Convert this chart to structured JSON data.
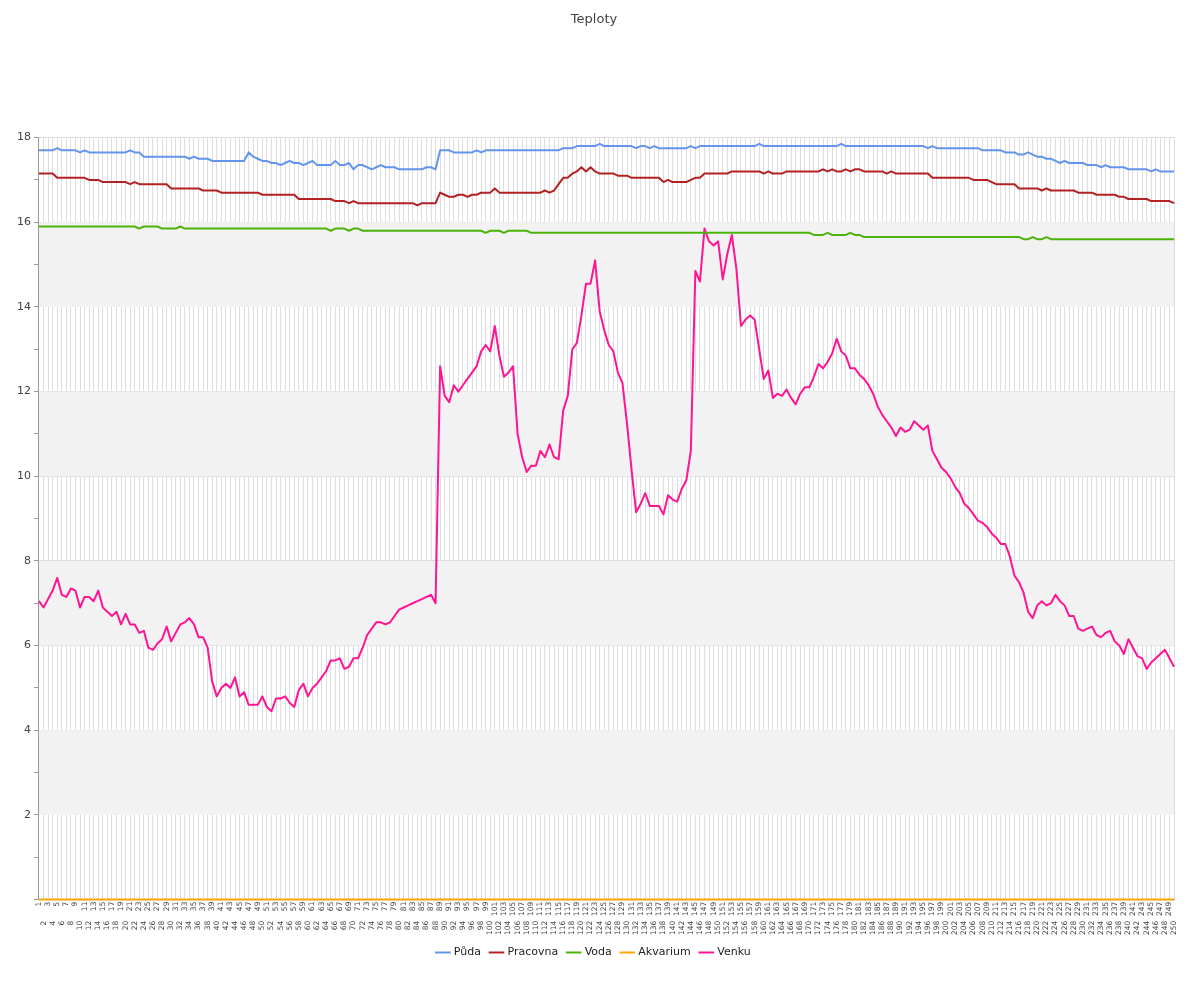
{
  "chart_data": {
    "type": "line",
    "title": "Teploty",
    "categories": [
      "1",
      "2",
      "3",
      "4",
      "5",
      "6",
      "7",
      "8",
      "9",
      "10",
      "11",
      "12",
      "13",
      "14",
      "15",
      "16",
      "17",
      "18",
      "19",
      "20",
      "21",
      "22",
      "23",
      "24",
      "25",
      "26",
      "27",
      "28",
      "29",
      "30",
      "31",
      "32",
      "33",
      "34",
      "35",
      "36",
      "37",
      "38",
      "39",
      "40",
      "41",
      "42",
      "43",
      "44",
      "45",
      "46",
      "47",
      "48",
      "49",
      "50",
      "51",
      "52",
      "53",
      "54",
      "55",
      "56",
      "57",
      "58",
      "59",
      "60",
      "61",
      "62",
      "63",
      "64",
      "65",
      "66",
      "67",
      "68",
      "69",
      "70",
      "71",
      "72",
      "73",
      "74",
      "75",
      "76",
      "77",
      "78",
      "79",
      "80",
      "81",
      "82",
      "83",
      "84",
      "85",
      "86",
      "87",
      "88",
      "89",
      "90",
      "91",
      "92",
      "93",
      "94",
      "95",
      "96",
      "97",
      "98",
      "99",
      "100",
      "101",
      "102",
      "103",
      "104",
      "105",
      "106",
      "107",
      "108",
      "109",
      "110",
      "111",
      "112",
      "113",
      "114",
      "115",
      "116",
      "117",
      "118",
      "119",
      "120",
      "121",
      "122",
      "123",
      "124",
      "125",
      "126",
      "127",
      "128",
      "129",
      "130",
      "131",
      "132",
      "133",
      "134",
      "135",
      "136",
      "137",
      "138",
      "139",
      "140",
      "141",
      "142",
      "143",
      "144",
      "145",
      "146",
      "147",
      "148",
      "149",
      "150",
      "151",
      "152",
      "153",
      "154",
      "155",
      "156",
      "157",
      "158",
      "159",
      "160",
      "161",
      "162",
      "163",
      "164",
      "165",
      "166",
      "167",
      "168",
      "169",
      "170",
      "171",
      "172",
      "173",
      "174",
      "175",
      "176",
      "177",
      "178",
      "179",
      "180",
      "181",
      "182",
      "183",
      "184",
      "185",
      "186",
      "187",
      "188",
      "189",
      "190",
      "191",
      "192",
      "193",
      "194",
      "195",
      "196",
      "197",
      "198",
      "199",
      "200",
      "201",
      "202",
      "203",
      "204",
      "205",
      "206",
      "207",
      "208",
      "209",
      "210",
      "211",
      "212",
      "213",
      "214",
      "215",
      "216",
      "217",
      "218",
      "219",
      "220",
      "221",
      "222",
      "223",
      "224",
      "225",
      "226",
      "227",
      "228",
      "229",
      "230",
      "231",
      "232",
      "233",
      "234",
      "235",
      "236",
      "237",
      "238",
      "239",
      "240",
      "241",
      "242",
      "243",
      "244",
      "245",
      "246",
      "247",
      "248",
      "249",
      "250"
    ],
    "series": [
      {
        "name": "Půda",
        "color": "#6495ed",
        "values": [
          17.7,
          17.7,
          17.7,
          17.7,
          17.75,
          17.7,
          17.7,
          17.7,
          17.7,
          17.65,
          17.7,
          17.65,
          17.65,
          17.65,
          17.65,
          17.65,
          17.65,
          17.65,
          17.65,
          17.65,
          17.7,
          17.65,
          17.65,
          17.55,
          17.55,
          17.55,
          17.55,
          17.55,
          17.55,
          17.55,
          17.55,
          17.55,
          17.55,
          17.5,
          17.55,
          17.5,
          17.5,
          17.5,
          17.45,
          17.45,
          17.45,
          17.45,
          17.45,
          17.45,
          17.45,
          17.45,
          17.65,
          17.55,
          17.5,
          17.45,
          17.45,
          17.4,
          17.4,
          17.35,
          17.4,
          17.45,
          17.4,
          17.4,
          17.35,
          17.4,
          17.45,
          17.35,
          17.35,
          17.35,
          17.35,
          17.45,
          17.35,
          17.35,
          17.4,
          17.25,
          17.35,
          17.35,
          17.3,
          17.25,
          17.3,
          17.35,
          17.3,
          17.3,
          17.3,
          17.25,
          17.25,
          17.25,
          17.25,
          17.25,
          17.25,
          17.3,
          17.3,
          17.25,
          17.7,
          17.7,
          17.7,
          17.65,
          17.65,
          17.65,
          17.65,
          17.65,
          17.7,
          17.65,
          17.7,
          17.7,
          17.7,
          17.7,
          17.7,
          17.7,
          17.7,
          17.7,
          17.7,
          17.7,
          17.7,
          17.7,
          17.7,
          17.7,
          17.7,
          17.7,
          17.7,
          17.75,
          17.75,
          17.75,
          17.8,
          17.8,
          17.8,
          17.8,
          17.8,
          17.85,
          17.8,
          17.8,
          17.8,
          17.8,
          17.8,
          17.8,
          17.8,
          17.75,
          17.8,
          17.8,
          17.75,
          17.8,
          17.75,
          17.75,
          17.75,
          17.75,
          17.75,
          17.75,
          17.75,
          17.8,
          17.75,
          17.8,
          17.8,
          17.8,
          17.8,
          17.8,
          17.8,
          17.8,
          17.8,
          17.8,
          17.8,
          17.8,
          17.8,
          17.8,
          17.85,
          17.8,
          17.8,
          17.8,
          17.8,
          17.8,
          17.8,
          17.8,
          17.8,
          17.8,
          17.8,
          17.8,
          17.8,
          17.8,
          17.8,
          17.8,
          17.8,
          17.8,
          17.85,
          17.8,
          17.8,
          17.8,
          17.8,
          17.8,
          17.8,
          17.8,
          17.8,
          17.8,
          17.8,
          17.8,
          17.8,
          17.8,
          17.8,
          17.8,
          17.8,
          17.8,
          17.8,
          17.75,
          17.8,
          17.75,
          17.75,
          17.75,
          17.75,
          17.75,
          17.75,
          17.75,
          17.75,
          17.75,
          17.75,
          17.7,
          17.7,
          17.7,
          17.7,
          17.7,
          17.65,
          17.65,
          17.65,
          17.6,
          17.6,
          17.65,
          17.6,
          17.55,
          17.55,
          17.5,
          17.5,
          17.45,
          17.4,
          17.45,
          17.4,
          17.4,
          17.4,
          17.4,
          17.35,
          17.35,
          17.35,
          17.3,
          17.35,
          17.3,
          17.3,
          17.3,
          17.3,
          17.25,
          17.25,
          17.25,
          17.25,
          17.25,
          17.2,
          17.25,
          17.2,
          17.2,
          17.2,
          17.2
        ]
      },
      {
        "name": "Pracovna",
        "color": "#b22222",
        "values": [
          17.15,
          17.15,
          17.15,
          17.15,
          17.05,
          17.05,
          17.05,
          17.05,
          17.05,
          17.05,
          17.05,
          17.0,
          17.0,
          17.0,
          16.95,
          16.95,
          16.95,
          16.95,
          16.95,
          16.95,
          16.9,
          16.95,
          16.9,
          16.9,
          16.9,
          16.9,
          16.9,
          16.9,
          16.9,
          16.8,
          16.8,
          16.8,
          16.8,
          16.8,
          16.8,
          16.8,
          16.75,
          16.75,
          16.75,
          16.75,
          16.7,
          16.7,
          16.7,
          16.7,
          16.7,
          16.7,
          16.7,
          16.7,
          16.7,
          16.65,
          16.65,
          16.65,
          16.65,
          16.65,
          16.65,
          16.65,
          16.65,
          16.55,
          16.55,
          16.55,
          16.55,
          16.55,
          16.55,
          16.55,
          16.55,
          16.5,
          16.5,
          16.5,
          16.45,
          16.5,
          16.45,
          16.45,
          16.45,
          16.45,
          16.45,
          16.45,
          16.45,
          16.45,
          16.45,
          16.45,
          16.45,
          16.45,
          16.45,
          16.4,
          16.45,
          16.45,
          16.45,
          16.45,
          16.7,
          16.65,
          16.6,
          16.6,
          16.65,
          16.65,
          16.6,
          16.65,
          16.65,
          16.7,
          16.7,
          16.7,
          16.8,
          16.7,
          16.7,
          16.7,
          16.7,
          16.7,
          16.7,
          16.7,
          16.7,
          16.7,
          16.7,
          16.75,
          16.7,
          16.75,
          16.9,
          17.05,
          17.05,
          17.15,
          17.2,
          17.3,
          17.2,
          17.3,
          17.2,
          17.15,
          17.15,
          17.15,
          17.15,
          17.1,
          17.1,
          17.1,
          17.05,
          17.05,
          17.05,
          17.05,
          17.05,
          17.05,
          17.05,
          16.95,
          17.0,
          16.95,
          16.95,
          16.95,
          16.95,
          17.0,
          17.05,
          17.05,
          17.15,
          17.15,
          17.15,
          17.15,
          17.15,
          17.15,
          17.2,
          17.2,
          17.2,
          17.2,
          17.2,
          17.2,
          17.2,
          17.15,
          17.2,
          17.15,
          17.15,
          17.15,
          17.2,
          17.2,
          17.2,
          17.2,
          17.2,
          17.2,
          17.2,
          17.2,
          17.25,
          17.2,
          17.25,
          17.2,
          17.2,
          17.25,
          17.2,
          17.25,
          17.25,
          17.2,
          17.2,
          17.2,
          17.2,
          17.2,
          17.15,
          17.2,
          17.15,
          17.15,
          17.15,
          17.15,
          17.15,
          17.15,
          17.15,
          17.15,
          17.05,
          17.05,
          17.05,
          17.05,
          17.05,
          17.05,
          17.05,
          17.05,
          17.05,
          17.0,
          17.0,
          17.0,
          17.0,
          16.95,
          16.9,
          16.9,
          16.9,
          16.9,
          16.9,
          16.8,
          16.8,
          16.8,
          16.8,
          16.8,
          16.75,
          16.8,
          16.75,
          16.75,
          16.75,
          16.75,
          16.75,
          16.75,
          16.7,
          16.7,
          16.7,
          16.7,
          16.65,
          16.65,
          16.65,
          16.65,
          16.65,
          16.6,
          16.6,
          16.55,
          16.55,
          16.55,
          16.55,
          16.55,
          16.5,
          16.5,
          16.5,
          16.5,
          16.5,
          16.45
        ]
      },
      {
        "name": "Voda",
        "color": "#4cb30a",
        "values": [
          15.9,
          15.9,
          15.9,
          15.9,
          15.9,
          15.9,
          15.9,
          15.9,
          15.9,
          15.9,
          15.9,
          15.9,
          15.9,
          15.9,
          15.9,
          15.9,
          15.9,
          15.9,
          15.9,
          15.9,
          15.9,
          15.9,
          15.85,
          15.9,
          15.9,
          15.9,
          15.9,
          15.85,
          15.85,
          15.85,
          15.85,
          15.9,
          15.85,
          15.85,
          15.85,
          15.85,
          15.85,
          15.85,
          15.85,
          15.85,
          15.85,
          15.85,
          15.85,
          15.85,
          15.85,
          15.85,
          15.85,
          15.85,
          15.85,
          15.85,
          15.85,
          15.85,
          15.85,
          15.85,
          15.85,
          15.85,
          15.85,
          15.85,
          15.85,
          15.85,
          15.85,
          15.85,
          15.85,
          15.85,
          15.8,
          15.85,
          15.85,
          15.85,
          15.8,
          15.85,
          15.85,
          15.8,
          15.8,
          15.8,
          15.8,
          15.8,
          15.8,
          15.8,
          15.8,
          15.8,
          15.8,
          15.8,
          15.8,
          15.8,
          15.8,
          15.8,
          15.8,
          15.8,
          15.8,
          15.8,
          15.8,
          15.8,
          15.8,
          15.8,
          15.8,
          15.8,
          15.8,
          15.8,
          15.75,
          15.8,
          15.8,
          15.8,
          15.75,
          15.8,
          15.8,
          15.8,
          15.8,
          15.8,
          15.75,
          15.75,
          15.75,
          15.75,
          15.75,
          15.75,
          15.75,
          15.75,
          15.75,
          15.75,
          15.75,
          15.75,
          15.75,
          15.75,
          15.75,
          15.75,
          15.75,
          15.75,
          15.75,
          15.75,
          15.75,
          15.75,
          15.75,
          15.75,
          15.75,
          15.75,
          15.75,
          15.75,
          15.75,
          15.75,
          15.75,
          15.75,
          15.75,
          15.75,
          15.75,
          15.75,
          15.75,
          15.75,
          15.75,
          15.75,
          15.75,
          15.75,
          15.75,
          15.75,
          15.75,
          15.75,
          15.75,
          15.75,
          15.75,
          15.75,
          15.75,
          15.75,
          15.75,
          15.75,
          15.75,
          15.75,
          15.75,
          15.75,
          15.75,
          15.75,
          15.75,
          15.75,
          15.7,
          15.7,
          15.7,
          15.75,
          15.7,
          15.7,
          15.7,
          15.7,
          15.75,
          15.7,
          15.7,
          15.65,
          15.65,
          15.65,
          15.65,
          15.65,
          15.65,
          15.65,
          15.65,
          15.65,
          15.65,
          15.65,
          15.65,
          15.65,
          15.65,
          15.65,
          15.65,
          15.65,
          15.65,
          15.65,
          15.65,
          15.65,
          15.65,
          15.65,
          15.65,
          15.65,
          15.65,
          15.65,
          15.65,
          15.65,
          15.65,
          15.65,
          15.65,
          15.65,
          15.65,
          15.65,
          15.6,
          15.6,
          15.65,
          15.6,
          15.6,
          15.65,
          15.6,
          15.6,
          15.6,
          15.6,
          15.6,
          15.6,
          15.6,
          15.6,
          15.6,
          15.6,
          15.6,
          15.6,
          15.6,
          15.6,
          15.6,
          15.6,
          15.6,
          15.6,
          15.6,
          15.6,
          15.6,
          15.6,
          15.6,
          15.6,
          15.6,
          15.6,
          15.6,
          15.6
        ]
      },
      {
        "name": "Akvarium",
        "color": "#ffa500",
        "values": [
          0,
          0,
          0,
          0,
          0,
          0,
          0,
          0,
          0,
          0,
          0,
          0,
          0,
          0,
          0,
          0,
          0,
          0,
          0,
          0,
          0,
          0,
          0,
          0,
          0,
          0,
          0,
          0,
          0,
          0,
          0,
          0,
          0,
          0,
          0,
          0,
          0,
          0,
          0,
          0,
          0,
          0,
          0,
          0,
          0,
          0,
          0,
          0,
          0,
          0,
          0,
          0,
          0,
          0,
          0,
          0,
          0,
          0,
          0,
          0,
          0,
          0,
          0,
          0,
          0,
          0,
          0,
          0,
          0,
          0,
          0,
          0,
          0,
          0,
          0,
          0,
          0,
          0,
          0,
          0,
          0,
          0,
          0,
          0,
          0,
          0,
          0,
          0,
          0,
          0,
          0,
          0,
          0,
          0,
          0,
          0,
          0,
          0,
          0,
          0,
          0,
          0,
          0,
          0,
          0,
          0,
          0,
          0,
          0,
          0,
          0,
          0,
          0,
          0,
          0,
          0,
          0,
          0,
          0,
          0,
          0,
          0,
          0,
          0,
          0,
          0,
          0,
          0,
          0,
          0,
          0,
          0,
          0,
          0,
          0,
          0,
          0,
          0,
          0,
          0,
          0,
          0,
          0,
          0,
          0,
          0,
          0,
          0,
          0,
          0,
          0,
          0,
          0,
          0,
          0,
          0,
          0,
          0,
          0,
          0,
          0,
          0,
          0,
          0,
          0,
          0,
          0,
          0,
          0,
          0,
          0,
          0,
          0,
          0,
          0,
          0,
          0,
          0,
          0,
          0,
          0,
          0,
          0,
          0,
          0,
          0,
          0,
          0,
          0,
          0,
          0,
          0,
          0,
          0,
          0,
          0,
          0,
          0,
          0,
          0,
          0,
          0,
          0,
          0,
          0,
          0,
          0,
          0,
          0,
          0,
          0,
          0,
          0,
          0,
          0,
          0,
          0,
          0,
          0,
          0,
          0,
          0,
          0,
          0,
          0,
          0,
          0,
          0,
          0,
          0,
          0,
          0,
          0,
          0,
          0,
          0,
          0,
          0,
          0,
          0,
          0,
          0,
          0,
          0,
          0,
          0,
          0,
          0,
          0,
          0
        ]
      },
      {
        "name": "Venku",
        "color": "#ff1493",
        "values": [
          7.05,
          6.9,
          7.1,
          7.3,
          7.6,
          7.2,
          7.15,
          7.35,
          7.3,
          6.9,
          7.15,
          7.15,
          7.05,
          7.3,
          6.9,
          6.8,
          6.7,
          6.8,
          6.5,
          6.75,
          6.5,
          6.5,
          6.3,
          6.35,
          5.95,
          5.9,
          6.05,
          6.15,
          6.45,
          6.1,
          6.3,
          6.5,
          6.55,
          6.65,
          6.5,
          6.2,
          6.2,
          5.95,
          5.15,
          4.8,
          5.0,
          5.1,
          5.0,
          5.25,
          4.8,
          4.9,
          4.6,
          4.6,
          4.6,
          4.8,
          4.55,
          4.45,
          4.75,
          4.75,
          4.8,
          4.65,
          4.55,
          4.95,
          5.1,
          4.8,
          5.0,
          5.1,
          5.25,
          5.4,
          5.65,
          5.65,
          5.7,
          5.45,
          5.5,
          5.7,
          5.7,
          5.95,
          6.25,
          6.4,
          6.55,
          6.55,
          6.5,
          6.55,
          6.7,
          6.85,
          6.9,
          6.95,
          7.0,
          7.05,
          7.1,
          7.15,
          7.2,
          7.0,
          12.6,
          11.9,
          11.75,
          12.15,
          12.0,
          12.15,
          12.3,
          12.45,
          12.6,
          12.95,
          13.1,
          12.95,
          13.55,
          12.85,
          12.35,
          12.45,
          12.6,
          11.0,
          10.45,
          10.1,
          10.25,
          10.25,
          10.6,
          10.45,
          10.75,
          10.45,
          10.4,
          11.55,
          11.9,
          13.0,
          13.15,
          13.8,
          14.55,
          14.55,
          15.1,
          13.9,
          13.45,
          13.1,
          12.95,
          12.45,
          12.2,
          11.25,
          10.15,
          9.15,
          9.35,
          9.6,
          9.3,
          9.3,
          9.3,
          9.1,
          9.55,
          9.45,
          9.4,
          9.7,
          9.9,
          10.6,
          14.85,
          14.6,
          15.85,
          15.55,
          15.45,
          15.55,
          14.65,
          15.25,
          15.7,
          14.9,
          13.55,
          13.7,
          13.8,
          13.7,
          13.0,
          12.3,
          12.5,
          11.85,
          11.95,
          11.9,
          12.05,
          11.85,
          11.7,
          11.95,
          12.1,
          12.1,
          12.35,
          12.65,
          12.55,
          12.7,
          12.9,
          13.25,
          12.95,
          12.85,
          12.55,
          12.55,
          12.4,
          12.3,
          12.15,
          11.95,
          11.65,
          11.45,
          11.3,
          11.15,
          10.95,
          11.15,
          11.05,
          11.1,
          11.3,
          11.2,
          11.1,
          11.2,
          10.6,
          10.4,
          10.2,
          10.1,
          9.95,
          9.75,
          9.6,
          9.35,
          9.25,
          9.1,
          8.95,
          8.9,
          8.8,
          8.65,
          8.55,
          8.4,
          8.4,
          8.1,
          7.65,
          7.5,
          7.25,
          6.8,
          6.65,
          6.95,
          7.05,
          6.95,
          7.0,
          7.2,
          7.05,
          6.95,
          6.7,
          6.7,
          6.4,
          6.35,
          6.4,
          6.45,
          6.25,
          6.2,
          6.3,
          6.35,
          6.1,
          6.0,
          5.8,
          6.15,
          5.95,
          5.75,
          5.7,
          5.45,
          5.6,
          5.7,
          5.8,
          5.9,
          5.7,
          5.5
        ]
      }
    ],
    "ylim": [
      0,
      18
    ],
    "yticks": [
      {
        "value": 0,
        "label": null
      },
      {
        "value": 1,
        "label": null
      },
      2,
      {
        "value": 3,
        "label": null
      },
      4,
      {
        "value": 5,
        "label": null
      },
      6,
      {
        "value": 7,
        "label": null
      },
      8,
      {
        "value": 9,
        "label": null
      },
      10,
      {
        "value": 11,
        "label": null
      },
      12,
      {
        "value": 13,
        "label": null
      },
      14,
      {
        "value": 15,
        "label": null
      },
      16,
      {
        "value": 17,
        "label": null
      },
      18
    ],
    "bands": [
      {
        "axis": "y",
        "from": 2,
        "to": 4,
        "color": "#f2f2f2"
      },
      {
        "axis": "y",
        "from": 6,
        "to": 8,
        "color": "#f2f2f2"
      },
      {
        "axis": "y",
        "from": 10,
        "to": 12,
        "color": "#f2f2f2"
      },
      {
        "axis": "y",
        "from": 14,
        "to": 16,
        "color": "#f2f2f2"
      }
    ],
    "grid": true,
    "legend": "bottom",
    "marker": "none",
    "line_style": "solid"
  }
}
